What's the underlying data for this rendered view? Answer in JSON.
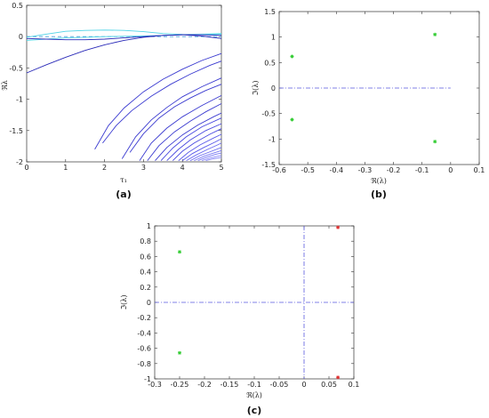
{
  "chart_data": [
    {
      "type": "line",
      "panel_label": "(a)",
      "xlabel": "τ₁",
      "ylabel": "ℜλ",
      "xlim": [
        0,
        5
      ],
      "ylim": [
        -2,
        0.5
      ],
      "xticks": [
        "0",
        "1",
        "2",
        "3",
        "4",
        "5"
      ],
      "yticks": [
        "0.5",
        "0",
        "-0.5",
        "-1",
        "-1.5",
        "-2"
      ],
      "reference_line": {
        "y": 0,
        "style": "dashed",
        "color": "#4a9fd6"
      },
      "series": [
        {
          "color": "#4fd3e6",
          "x": [
            0,
            0.5,
            1,
            1.5,
            2,
            2.5,
            3,
            3.5,
            4,
            4.5,
            5
          ],
          "y": [
            -0.01,
            0.04,
            0.085,
            0.1,
            0.105,
            0.1,
            0.08,
            0.05,
            0.035,
            0.03,
            0.035
          ]
        },
        {
          "color": "#4fd3e6",
          "x": [
            0,
            0.5,
            1,
            1.5,
            2,
            2.5,
            3,
            3.5,
            4,
            4.5,
            5
          ],
          "y": [
            -0.06,
            -0.04,
            -0.02,
            -0.01,
            0.0,
            0.005,
            0.01,
            0.02,
            0.03,
            0.04,
            0.05
          ]
        },
        {
          "color": "#2a2ab8",
          "x": [
            0,
            0.5,
            1,
            1.5,
            2,
            2.5,
            3,
            3.5,
            4,
            4.5,
            5
          ],
          "y": [
            -0.58,
            -0.45,
            -0.33,
            -0.22,
            -0.13,
            -0.06,
            -0.01,
            0.02,
            0.03,
            0.01,
            -0.03
          ]
        },
        {
          "color": "#2a2ab8",
          "x": [
            0,
            0.5,
            1,
            1.5,
            2,
            2.5,
            3,
            3.5,
            4,
            4.5,
            5
          ],
          "y": [
            -0.03,
            -0.04,
            -0.05,
            -0.05,
            -0.04,
            -0.02,
            0.0,
            0.02,
            0.03,
            0.03,
            0.02
          ]
        },
        {
          "color": "#3a3ad0",
          "x": [
            1.75,
            2.1,
            2.5,
            3.0,
            3.5,
            4.0,
            4.5,
            5.0
          ],
          "y": [
            -1.8,
            -1.42,
            -1.14,
            -0.88,
            -0.68,
            -0.52,
            -0.38,
            -0.27
          ]
        },
        {
          "color": "#3a3ad0",
          "x": [
            1.95,
            2.3,
            2.7,
            3.2,
            3.7,
            4.2,
            4.7,
            5.0
          ],
          "y": [
            -1.7,
            -1.42,
            -1.18,
            -0.95,
            -0.76,
            -0.6,
            -0.46,
            -0.39
          ]
        },
        {
          "color": "#3a3ad0",
          "x": [
            2.45,
            2.8,
            3.2,
            3.6,
            4.0,
            4.5,
            5.0
          ],
          "y": [
            -1.95,
            -1.6,
            -1.33,
            -1.13,
            -0.96,
            -0.8,
            -0.66
          ]
        },
        {
          "color": "#3a3ad0",
          "x": [
            2.65,
            3.0,
            3.4,
            3.8,
            4.2,
            4.6,
            5.0
          ],
          "y": [
            -1.85,
            -1.55,
            -1.3,
            -1.12,
            -0.98,
            -0.86,
            -0.76
          ]
        },
        {
          "color": "#3a3ad0",
          "x": [
            2.9,
            3.2,
            3.6,
            4.0,
            4.5,
            5.0
          ],
          "y": [
            -1.98,
            -1.7,
            -1.46,
            -1.28,
            -1.1,
            -0.94
          ]
        },
        {
          "color": "#3a3ad0",
          "x": [
            3.1,
            3.4,
            3.8,
            4.2,
            4.6,
            5.0
          ],
          "y": [
            -1.98,
            -1.74,
            -1.52,
            -1.35,
            -1.2,
            -1.07
          ]
        },
        {
          "color": "#3a3ad0",
          "x": [
            3.3,
            3.6,
            4.0,
            4.4,
            4.8,
            5.0
          ],
          "y": [
            -1.98,
            -1.77,
            -1.57,
            -1.41,
            -1.28,
            -1.22
          ]
        },
        {
          "color": "#4848e0",
          "x": [
            3.45,
            3.75,
            4.1,
            4.5,
            5.0
          ],
          "y": [
            -1.98,
            -1.78,
            -1.6,
            -1.44,
            -1.3
          ]
        },
        {
          "color": "#4848e0",
          "x": [
            3.6,
            3.9,
            4.2,
            4.6,
            5.0
          ],
          "y": [
            -1.98,
            -1.8,
            -1.65,
            -1.5,
            -1.39
          ]
        },
        {
          "color": "#4848e0",
          "x": [
            3.75,
            4.0,
            4.3,
            4.7,
            5.0
          ],
          "y": [
            -1.98,
            -1.83,
            -1.7,
            -1.56,
            -1.47
          ]
        },
        {
          "color": "#5a5aea",
          "x": [
            3.9,
            4.15,
            4.45,
            4.8,
            5.0
          ],
          "y": [
            -1.98,
            -1.85,
            -1.73,
            -1.62,
            -1.56
          ]
        },
        {
          "color": "#5a5aea",
          "x": [
            4.0,
            4.25,
            4.55,
            4.85,
            5.0
          ],
          "y": [
            -1.98,
            -1.87,
            -1.77,
            -1.68,
            -1.63
          ]
        },
        {
          "color": "#6a6af0",
          "x": [
            4.1,
            4.35,
            4.65,
            4.9,
            5.0
          ],
          "y": [
            -1.98,
            -1.89,
            -1.8,
            -1.73,
            -1.7
          ]
        },
        {
          "color": "#6a6af0",
          "x": [
            4.2,
            4.45,
            4.75,
            5.0
          ],
          "y": [
            -1.98,
            -1.9,
            -1.83,
            -1.77
          ]
        },
        {
          "color": "#7a7af4",
          "x": [
            4.3,
            4.55,
            4.8,
            5.0
          ],
          "y": [
            -1.98,
            -1.91,
            -1.86,
            -1.82
          ]
        },
        {
          "color": "#7a7af4",
          "x": [
            4.4,
            4.6,
            4.85,
            5.0
          ],
          "y": [
            -1.98,
            -1.93,
            -1.88,
            -1.86
          ]
        },
        {
          "color": "#8a8af8",
          "x": [
            4.5,
            4.7,
            4.9,
            5.0
          ],
          "y": [
            -1.98,
            -1.94,
            -1.91,
            -1.9
          ]
        },
        {
          "color": "#8a8af8",
          "x": [
            4.6,
            4.8,
            5.0
          ],
          "y": [
            -1.98,
            -1.95,
            -1.93
          ]
        }
      ]
    },
    {
      "type": "scatter",
      "panel_label": "(b)",
      "xlabel": "ℜ(λ)",
      "ylabel": "ℑ(λ)",
      "xlim": [
        -0.6,
        0.1
      ],
      "ylim": [
        -1.5,
        1.5
      ],
      "xticks": [
        "-0.6",
        "-0.5",
        "-0.4",
        "-0.3",
        "-0.2",
        "-0.1",
        "0",
        "0.1"
      ],
      "yticks": [
        "1.5",
        "1",
        "0.5",
        "0",
        "-0.5",
        "-1",
        "-1.5"
      ],
      "reference_line": {
        "y": 0,
        "x_range": [
          -0.6,
          0
        ],
        "style": "dashdot",
        "color": "#5a5ae0"
      },
      "points": [
        {
          "x": -0.555,
          "y": 0.62,
          "color": "#33cc33"
        },
        {
          "x": -0.555,
          "y": -0.62,
          "color": "#33cc33"
        },
        {
          "x": -0.055,
          "y": 1.05,
          "color": "#33cc33"
        },
        {
          "x": -0.055,
          "y": -1.05,
          "color": "#33cc33"
        }
      ]
    },
    {
      "type": "scatter",
      "panel_label": "(c)",
      "xlabel": "ℜ(λ)",
      "ylabel": "ℑ(λ)",
      "xlim": [
        -0.3,
        0.1
      ],
      "ylim": [
        -1,
        1
      ],
      "xticks": [
        "-0.3",
        "-0.25",
        "-0.2",
        "-0.15",
        "-0.1",
        "-0.05",
        "0",
        "0.05",
        "0.1"
      ],
      "yticks": [
        "1",
        "0.8",
        "0.6",
        "0.4",
        "0.2",
        "0",
        "-0.2",
        "-0.4",
        "-0.6",
        "-0.8",
        "-1"
      ],
      "reference_line": {
        "y": 0,
        "style": "dashdot",
        "color": "#5a5ae0"
      },
      "reference_vline": {
        "x": 0,
        "style": "dashdot",
        "color": "#5a5ae0"
      },
      "points": [
        {
          "x": -0.25,
          "y": 0.66,
          "color": "#33cc33"
        },
        {
          "x": -0.25,
          "y": -0.66,
          "color": "#33cc33"
        },
        {
          "x": 0.068,
          "y": 0.98,
          "color": "#e03030"
        },
        {
          "x": 0.068,
          "y": -0.98,
          "color": "#e03030"
        }
      ]
    }
  ]
}
